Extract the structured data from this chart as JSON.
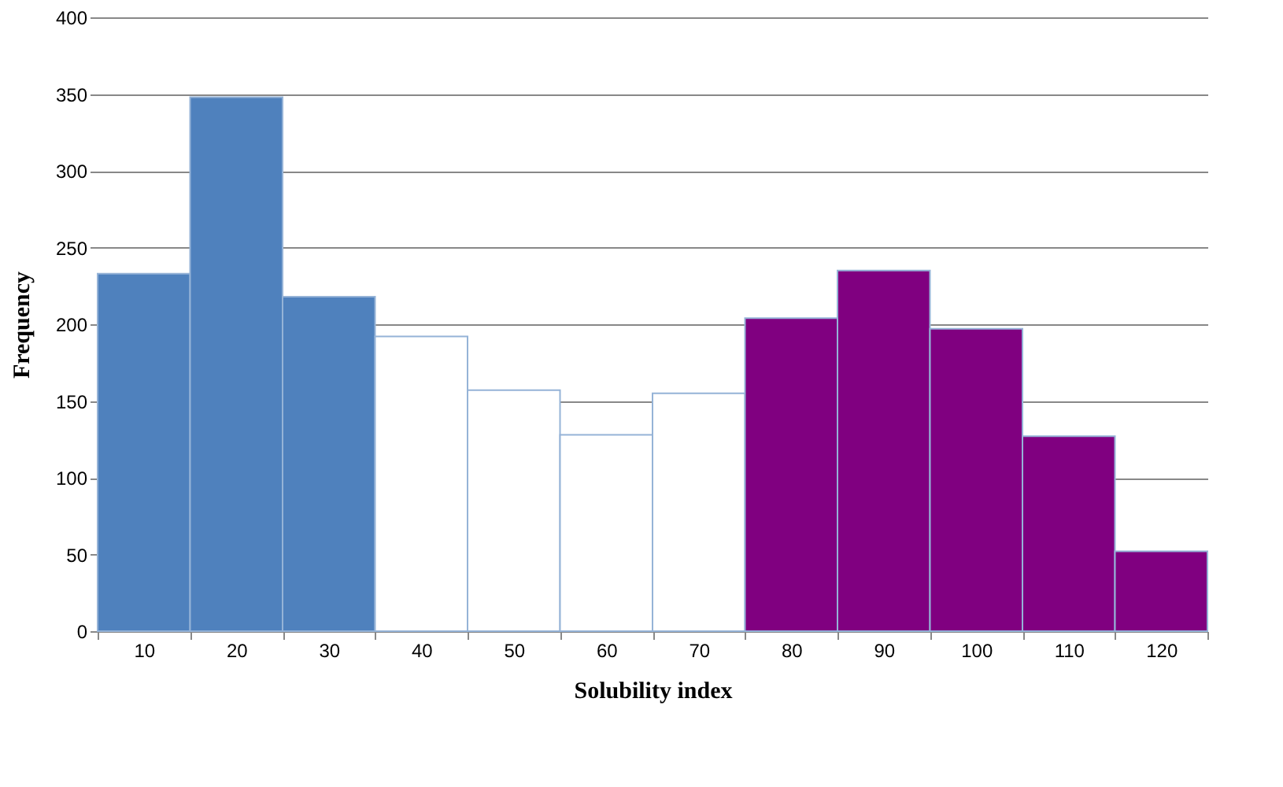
{
  "chart_data": {
    "type": "bar",
    "xlabel": "Solubility index",
    "ylabel": "Frequency",
    "categories": [
      "10",
      "20",
      "30",
      "40",
      "50",
      "60",
      "70",
      "80",
      "90",
      "100",
      "110",
      "120"
    ],
    "values": [
      233,
      348,
      218,
      192,
      157,
      128,
      155,
      204,
      235,
      197,
      127,
      52
    ],
    "colors": [
      "#4f81bd",
      "#4f81bd",
      "#4f81bd",
      "#ffffff",
      "#ffffff",
      "#ffffff",
      "#ffffff",
      "#800080",
      "#800080",
      "#800080",
      "#800080",
      "#800080"
    ],
    "ylim": [
      0,
      400
    ],
    "yticks": [
      0,
      50,
      100,
      150,
      200,
      250,
      300,
      350,
      400
    ],
    "grid": "y"
  }
}
